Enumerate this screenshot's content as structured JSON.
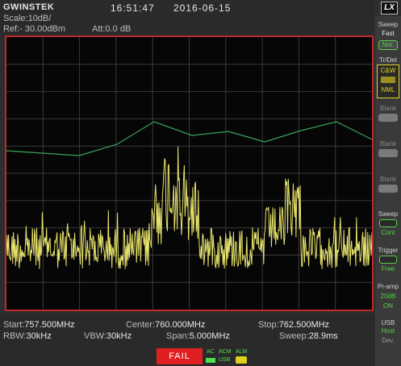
{
  "header": {
    "brand": "GWINSTEK",
    "time": "16:51:47",
    "date": "2016-06-15",
    "logo": "LX",
    "scale": "Scale:10dB/",
    "ref": "Ref:- 30.00dBm",
    "att": "Att:0.0 dB"
  },
  "side": {
    "sweep_label": "Sweep",
    "sweep_fast": "Fast",
    "sweep_nor": "Nor.",
    "trdet_label": "Tr/Det",
    "trdet_cw": "C&W",
    "trdet_nml": "NML",
    "blank1": "Blank",
    "blank2": "Blank",
    "blank3": "Blank",
    "sweep2_label": "Sweep",
    "sweep2_value": "Cont",
    "trigger_label": "Trigger",
    "trigger_value": "Free",
    "preamp_label": "Pr-amp",
    "preamp_gain": "20dB",
    "preamp_state": "ON",
    "usb_label": "USB",
    "usb_mode": "Host",
    "usb_dev": "Dev."
  },
  "footer": {
    "start_label": "Start:",
    "start_value": "757.500MHz",
    "center_label": "Center:",
    "center_value": "760.000MHz",
    "stop_label": "Stop:",
    "stop_value": "762.500MHz",
    "rbw_label": "RBW:",
    "rbw_value": "30kHz",
    "vbw_label": "VBW:",
    "vbw_value": "30kHz",
    "span_label": "Span:",
    "span_value": "5.000MHz",
    "sweep_label": "Sweep:",
    "sweep_value": "28.9ms",
    "fail_label": "FAIL",
    "ac_label": "AC",
    "acm_label": "ACM",
    "alm_label": "ALM",
    "usb_label": "USB"
  },
  "colors": {
    "trace": "#e7e26c",
    "limit_line": "#3ea35a",
    "frame": "#c0282a",
    "fail": "#e02020"
  }
}
